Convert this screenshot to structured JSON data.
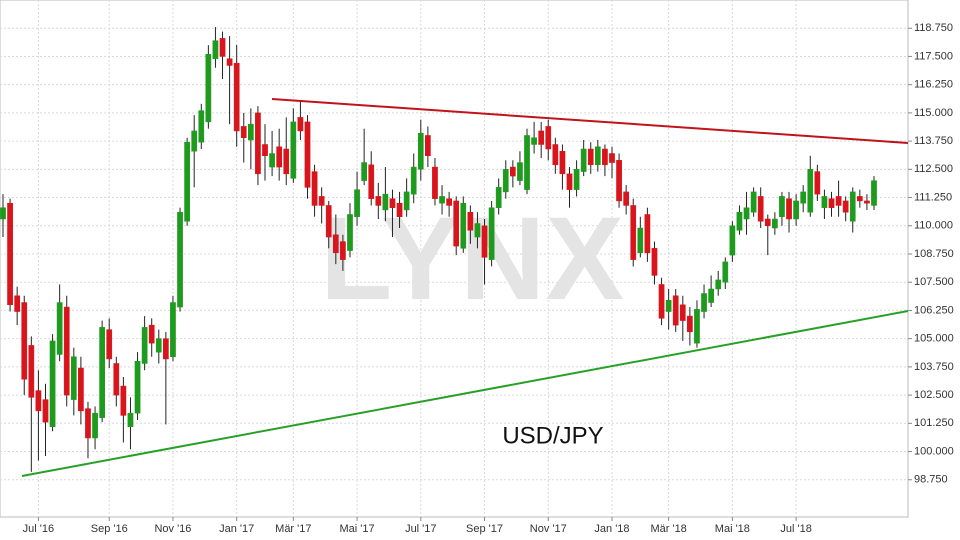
{
  "chart_data": {
    "type": "candlestick",
    "label": "USD/JPY",
    "watermark": "LYNX",
    "categories": [
      null,
      null,
      null,
      null,
      null,
      "Jul '16",
      null,
      null,
      null,
      null,
      null,
      null,
      null,
      null,
      null,
      "Sep '16",
      null,
      null,
      null,
      null,
      null,
      null,
      null,
      null,
      "Nov '16",
      null,
      null,
      null,
      null,
      null,
      null,
      null,
      null,
      "Jan '17",
      null,
      null,
      null,
      null,
      null,
      null,
      null,
      "Mär '17",
      null,
      null,
      null,
      null,
      null,
      null,
      null,
      null,
      "Mai '17",
      null,
      null,
      null,
      null,
      null,
      null,
      null,
      null,
      "Jul '17",
      null,
      null,
      null,
      null,
      null,
      null,
      null,
      null,
      "Sep '17",
      null,
      null,
      null,
      null,
      null,
      null,
      null,
      null,
      "Nov '17",
      null,
      null,
      null,
      null,
      null,
      null,
      null,
      null,
      "Jan '18",
      null,
      null,
      null,
      null,
      null,
      null,
      null,
      "Mär '18",
      null,
      null,
      null,
      null,
      null,
      null,
      null,
      null,
      "Mai '18",
      null,
      null,
      null,
      null,
      null,
      null,
      null,
      null,
      "Jul '18",
      null,
      null,
      null,
      null,
      null,
      null,
      null,
      null,
      null,
      null,
      null
    ],
    "open": [
      110.3,
      111.0,
      106.9,
      106.6,
      104.7,
      102.7,
      102.3,
      101.1,
      104.3,
      106.4,
      102.3,
      103.7,
      101.9,
      100.6,
      101.5,
      105.4,
      103.9,
      102.9,
      101.1,
      101.7,
      103.9,
      105.6,
      104.4,
      105.0,
      104.2,
      106.4,
      110.2,
      113.3,
      113.7,
      114.6,
      117.4,
      118.3,
      117.4,
      117.2,
      114.4,
      113.8,
      115.0,
      113.6,
      112.6,
      113.5,
      113.4,
      112.1,
      114.8,
      114.6,
      112.4,
      111.3,
      110.9,
      109.6,
      109.3,
      108.9,
      110.4,
      112.0,
      112.7,
      111.3,
      110.7,
      111.2,
      111.0,
      110.7,
      111.4,
      112.5,
      114.0,
      112.6,
      111.0,
      111.2,
      111.1,
      109.0,
      110.6,
      109.5,
      110.0,
      108.5,
      110.8,
      111.5,
      112.6,
      112.0,
      111.6,
      113.6,
      114.2,
      114.4,
      113.6,
      113.3,
      112.3,
      111.6,
      112.4,
      113.4,
      112.7,
      113.4,
      113.2,
      112.9,
      111.5,
      110.9,
      108.8,
      110.5,
      109.0,
      107.4,
      106.2,
      106.9,
      106.5,
      106.0,
      104.8,
      106.2,
      106.6,
      107.2,
      107.5,
      108.7,
      109.8,
      110.3,
      110.6,
      111.3,
      110.3,
      109.9,
      110.4,
      111.2,
      110.3,
      111.0,
      110.6,
      112.4,
      110.8,
      111.2,
      111.3,
      111.1,
      110.2,
      111.3,
      111.1,
      110.9
    ],
    "high": [
      111.4,
      111.2,
      107.3,
      106.9,
      105.1,
      103.6,
      103.0,
      105.2,
      107.4,
      106.9,
      104.6,
      104.2,
      102.2,
      102.0,
      105.8,
      105.9,
      104.2,
      103.3,
      102.4,
      104.4,
      106.0,
      105.9,
      105.4,
      105.3,
      106.9,
      110.8,
      113.9,
      114.9,
      115.4,
      118.0,
      118.8,
      118.6,
      118.4,
      118.0,
      115.0,
      115.2,
      115.3,
      114.5,
      114.2,
      114.3,
      114.8,
      115.2,
      115.5,
      114.9,
      112.7,
      111.7,
      111.1,
      110.5,
      109.6,
      111.0,
      112.4,
      114.3,
      113.3,
      111.9,
      112.6,
      111.6,
      111.5,
      112.1,
      113.2,
      114.7,
      114.4,
      113.0,
      111.8,
      111.5,
      111.3,
      111.3,
      110.9,
      110.6,
      110.3,
      111.1,
      112.1,
      112.9,
      112.9,
      113.3,
      114.3,
      114.6,
      114.6,
      114.7,
      113.9,
      113.6,
      112.6,
      112.9,
      113.8,
      113.7,
      113.8,
      113.6,
      113.5,
      113.2,
      111.8,
      111.2,
      110.4,
      110.8,
      109.3,
      107.7,
      107.2,
      107.2,
      106.9,
      106.4,
      106.7,
      107.4,
      107.8,
      108.0,
      108.6,
      110.2,
      110.9,
      111.5,
      111.7,
      111.7,
      110.5,
      110.6,
      111.5,
      111.5,
      111.4,
      111.8,
      113.1,
      112.7,
      111.6,
      111.5,
      112.0,
      111.3,
      111.7,
      111.6,
      111.4,
      112.2
    ],
    "low": [
      109.5,
      106.2,
      105.6,
      102.5,
      99.1,
      99.6,
      99.8,
      100.9,
      104.0,
      102.0,
      101.6,
      101.2,
      99.7,
      100.1,
      101.3,
      103.7,
      102.0,
      100.4,
      100.1,
      101.4,
      103.6,
      104.2,
      103.9,
      101.2,
      104.0,
      106.2,
      110.0,
      111.7,
      113.4,
      114.3,
      117.0,
      116.5,
      114.5,
      113.5,
      112.8,
      112.5,
      111.8,
      112.0,
      112.2,
      112.0,
      111.8,
      111.9,
      113.8,
      111.2,
      110.4,
      110.1,
      109.0,
      108.3,
      108.0,
      108.6,
      110.0,
      111.8,
      110.9,
      110.3,
      110.2,
      109.5,
      109.9,
      110.4,
      111.0,
      112.0,
      112.6,
      110.9,
      110.5,
      110.4,
      108.7,
      108.8,
      109.2,
      109.0,
      107.4,
      108.2,
      110.5,
      111.2,
      111.7,
      111.8,
      111.4,
      113.2,
      113.0,
      112.9,
      112.3,
      111.6,
      110.8,
      111.3,
      112.2,
      112.3,
      112.4,
      112.2,
      112.1,
      110.8,
      110.5,
      108.2,
      108.6,
      108.4,
      107.4,
      105.6,
      105.4,
      105.3,
      104.9,
      104.7,
      104.6,
      105.9,
      106.4,
      106.9,
      107.2,
      108.4,
      109.6,
      109.6,
      110.4,
      109.9,
      108.7,
      109.6,
      110.0,
      109.7,
      110.0,
      110.6,
      110.4,
      111.1,
      110.3,
      110.4,
      110.4,
      110.2,
      109.7,
      110.8,
      110.7,
      110.7
    ],
    "close": [
      110.8,
      106.5,
      106.2,
      103.2,
      102.4,
      101.8,
      101.3,
      104.9,
      106.6,
      102.5,
      104.2,
      101.8,
      100.6,
      101.7,
      105.5,
      104.1,
      102.5,
      101.6,
      101.7,
      104.0,
      105.5,
      104.8,
      105.0,
      104.1,
      106.6,
      110.6,
      113.7,
      114.2,
      115.1,
      117.6,
      118.2,
      117.5,
      117.1,
      114.2,
      113.9,
      114.5,
      112.3,
      113.1,
      113.2,
      112.6,
      112.3,
      114.6,
      114.2,
      111.7,
      110.9,
      110.9,
      109.5,
      108.8,
      108.5,
      110.5,
      111.6,
      112.8,
      111.2,
      110.9,
      111.4,
      110.8,
      110.4,
      111.5,
      112.6,
      114.1,
      113.1,
      111.2,
      111.3,
      110.9,
      109.1,
      111.0,
      109.8,
      110.1,
      108.6,
      110.8,
      111.7,
      112.5,
      112.2,
      112.8,
      114.0,
      113.9,
      113.6,
      113.4,
      112.7,
      112.3,
      111.6,
      112.5,
      113.4,
      112.7,
      113.5,
      112.7,
      112.8,
      111.1,
      110.9,
      108.5,
      109.9,
      108.8,
      107.8,
      105.9,
      106.7,
      105.6,
      105.8,
      105.3,
      106.3,
      107.0,
      107.2,
      107.6,
      108.4,
      110.0,
      110.6,
      110.8,
      111.5,
      110.2,
      110.0,
      110.3,
      111.3,
      110.3,
      111.1,
      111.5,
      112.5,
      111.4,
      111.3,
      110.8,
      110.9,
      110.6,
      111.5,
      111.1,
      111.0,
      112.0
    ],
    "up_color": "#1e9b1e",
    "down_color": "#d8141c",
    "ylim": [
      97.1,
      120.0
    ],
    "yticks": [
      {
        "value": 98.75,
        "label": "98.750"
      },
      {
        "value": 100,
        "label": "100.000"
      },
      {
        "value": 101.25,
        "label": "101.250"
      },
      {
        "value": 102.5,
        "label": "102.500"
      },
      {
        "value": 103.75,
        "label": "103.750"
      },
      {
        "value": 105,
        "label": "105.000"
      },
      {
        "value": 106.25,
        "label": "106.250"
      },
      {
        "value": 107.5,
        "label": "107.500"
      },
      {
        "value": 108.75,
        "label": "108.750"
      },
      {
        "value": 110,
        "label": "110.000"
      },
      {
        "value": 111.25,
        "label": "111.250"
      },
      {
        "value": 112.5,
        "label": "112.500"
      },
      {
        "value": 113.75,
        "label": "113.750"
      },
      {
        "value": 115,
        "label": "115.000"
      },
      {
        "value": 116.25,
        "label": "116.250"
      },
      {
        "value": 117.5,
        "label": "117.500"
      },
      {
        "value": 118.75,
        "label": "118.750"
      }
    ],
    "grid": true
  }
}
